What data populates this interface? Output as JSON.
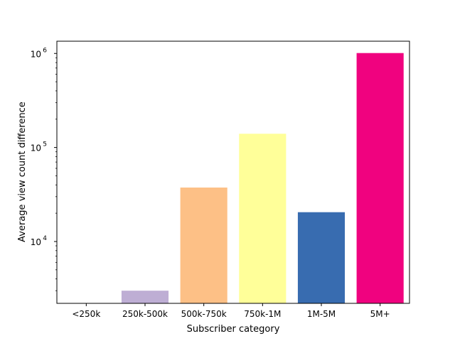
{
  "chart_data": {
    "type": "bar",
    "title": "",
    "xlabel": "Subscriber category",
    "ylabel": "Average view count difference",
    "yscale": "log",
    "ylim": [
      2200,
      1350000
    ],
    "grid": false,
    "categories": [
      "<250k",
      "250k-500k",
      "500k-750k",
      "750k-1M",
      "1M-5M",
      "5M+"
    ],
    "values": [
      2000,
      3000,
      37500,
      140000,
      20500,
      1010000
    ],
    "colors": [
      "#7fc97f",
      "#beaed4",
      "#fdc086",
      "#ffff99",
      "#386cb0",
      "#f0027f"
    ],
    "yticks": [
      {
        "value": 10000,
        "base": "10",
        "exp": "4"
      },
      {
        "value": 100000,
        "base": "10",
        "exp": "5"
      },
      {
        "value": 1000000,
        "base": "10",
        "exp": "6"
      }
    ]
  }
}
